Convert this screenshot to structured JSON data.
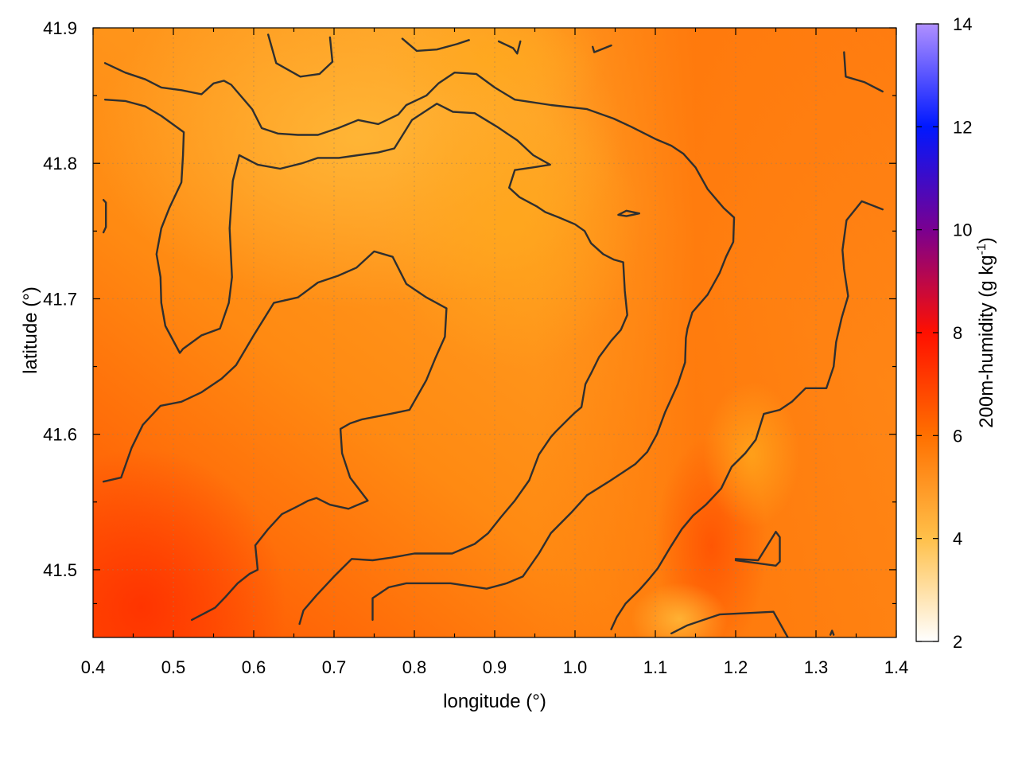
{
  "chart_data": {
    "type": "heatmap",
    "title": "",
    "xlabel": "longitude (°)",
    "ylabel": "latitude (°)",
    "colorbar_label": "200m-humidity (g kg",
    "colorbar_label_sup": "-1",
    "colorbar_label_end": ")",
    "xlim": [
      0.4,
      1.4
    ],
    "ylim": [
      41.45,
      41.9
    ],
    "x_ticks": [
      0.4,
      0.5,
      0.6,
      0.7,
      0.8,
      0.9,
      1.0,
      1.1,
      1.2,
      1.3,
      1.4
    ],
    "x_tick_labels": [
      "0.4",
      "0.5",
      "0.6",
      "0.7",
      "0.8",
      "0.9",
      "1.0",
      "1.1",
      "1.2",
      "1.3",
      "1.4"
    ],
    "y_ticks": [
      41.5,
      41.6,
      41.7,
      41.8,
      41.9
    ],
    "y_tick_labels": [
      "41.5",
      "41.6",
      "41.7",
      "41.8",
      "41.9"
    ],
    "colorbar_range": [
      2,
      14
    ],
    "colorbar_ticks": [
      2,
      4,
      6,
      8,
      10,
      12,
      14
    ],
    "colorbar_tick_labels": [
      "2",
      "4",
      "6",
      "8",
      "10",
      "12",
      "14"
    ],
    "colormap": [
      {
        "value": 2,
        "color": "#ffffff"
      },
      {
        "value": 4,
        "color": "#ffc04a"
      },
      {
        "value": 6,
        "color": "#ff7000"
      },
      {
        "value": 8,
        "color": "#ff1000"
      },
      {
        "value": 10,
        "color": "#7a0090"
      },
      {
        "value": 12,
        "color": "#0018ff"
      },
      {
        "value": 14,
        "color": "#b090ff"
      }
    ],
    "grid": true,
    "contours": [
      [
        [
          0.415,
          41.874
        ],
        [
          0.44,
          41.867
        ],
        [
          0.465,
          41.862
        ],
        [
          0.485,
          41.856
        ],
        [
          0.51,
          41.854
        ],
        [
          0.535,
          41.851
        ],
        [
          0.55,
          41.859
        ],
        [
          0.563,
          41.861
        ],
        [
          0.572,
          41.858
        ],
        [
          0.598,
          41.84
        ],
        [
          0.61,
          41.826
        ],
        [
          0.63,
          41.822
        ],
        [
          0.655,
          41.821
        ],
        [
          0.68,
          41.821
        ],
        [
          0.705,
          41.826
        ],
        [
          0.73,
          41.832
        ],
        [
          0.755,
          41.829
        ],
        [
          0.78,
          41.836
        ],
        [
          0.79,
          41.843
        ],
        [
          0.815,
          41.85
        ],
        [
          0.83,
          41.859
        ],
        [
          0.85,
          41.867
        ],
        [
          0.877,
          41.866
        ],
        [
          0.9,
          41.856
        ],
        [
          0.925,
          41.847
        ],
        [
          0.97,
          41.843
        ],
        [
          1.015,
          41.84
        ],
        [
          1.048,
          41.833
        ],
        [
          1.07,
          41.827
        ],
        [
          1.1,
          41.818
        ],
        [
          1.12,
          41.813
        ],
        [
          1.135,
          41.807
        ],
        [
          1.15,
          41.797
        ],
        [
          1.165,
          41.781
        ],
        [
          1.185,
          41.767
        ],
        [
          1.198,
          41.76
        ],
        [
          1.197,
          41.742
        ],
        [
          1.188,
          41.731
        ],
        [
          1.18,
          41.719
        ],
        [
          1.165,
          41.703
        ],
        [
          1.146,
          41.69
        ],
        [
          1.14,
          41.678
        ],
        [
          1.138,
          41.671
        ],
        [
          1.137,
          41.653
        ],
        [
          1.128,
          41.637
        ],
        [
          1.112,
          41.616
        ],
        [
          1.102,
          41.6
        ],
        [
          1.09,
          41.587
        ],
        [
          1.075,
          41.578
        ],
        [
          1.06,
          41.572
        ],
        [
          1.042,
          41.565
        ],
        [
          1.015,
          41.555
        ],
        [
          0.995,
          41.542
        ],
        [
          0.97,
          41.527
        ],
        [
          0.955,
          41.512
        ],
        [
          0.935,
          41.495
        ],
        [
          0.915,
          41.49
        ],
        [
          0.89,
          41.486
        ],
        [
          0.845,
          41.49
        ],
        [
          0.79,
          41.49
        ],
        [
          0.768,
          41.487
        ],
        [
          0.748,
          41.479
        ],
        [
          0.748,
          41.463
        ]
      ],
      [
        [
          0.415,
          41.847
        ],
        [
          0.44,
          41.846
        ],
        [
          0.465,
          41.842
        ],
        [
          0.485,
          41.835
        ],
        [
          0.513,
          41.823
        ],
        [
          0.512,
          41.806
        ],
        [
          0.51,
          41.786
        ],
        [
          0.495,
          41.767
        ],
        [
          0.485,
          41.752
        ],
        [
          0.479,
          41.733
        ],
        [
          0.484,
          41.716
        ],
        [
          0.485,
          41.697
        ],
        [
          0.49,
          41.68
        ],
        [
          0.508,
          41.66
        ],
        [
          0.512,
          41.663
        ],
        [
          0.535,
          41.673
        ],
        [
          0.558,
          41.678
        ],
        [
          0.569,
          41.697
        ],
        [
          0.573,
          41.716
        ],
        [
          0.57,
          41.752
        ],
        [
          0.574,
          41.787
        ],
        [
          0.582,
          41.806
        ],
        [
          0.605,
          41.799
        ],
        [
          0.633,
          41.796
        ],
        [
          0.66,
          41.8
        ],
        [
          0.68,
          41.804
        ],
        [
          0.706,
          41.804
        ],
        [
          0.73,
          41.806
        ],
        [
          0.755,
          41.808
        ],
        [
          0.775,
          41.811
        ],
        [
          0.797,
          41.832
        ],
        [
          0.828,
          41.844
        ],
        [
          0.848,
          41.838
        ],
        [
          0.875,
          41.837
        ],
        [
          0.903,
          41.827
        ],
        [
          0.928,
          41.817
        ],
        [
          0.948,
          41.806
        ],
        [
          0.969,
          41.799
        ],
        [
          0.948,
          41.797
        ],
        [
          0.925,
          41.795
        ],
        [
          0.918,
          41.782
        ],
        [
          0.931,
          41.775
        ],
        [
          0.953,
          41.768
        ],
        [
          0.963,
          41.764
        ],
        [
          0.98,
          41.76
        ],
        [
          1.0,
          41.755
        ],
        [
          1.012,
          41.75
        ],
        [
          1.02,
          41.741
        ],
        [
          1.035,
          41.733
        ],
        [
          1.048,
          41.729
        ],
        [
          1.06,
          41.727
        ],
        [
          1.062,
          41.706
        ],
        [
          1.065,
          41.688
        ],
        [
          1.057,
          41.677
        ],
        [
          1.045,
          41.669
        ],
        [
          1.03,
          41.657
        ],
        [
          1.02,
          41.645
        ],
        [
          1.013,
          41.637
        ],
        [
          1.008,
          41.62
        ],
        [
          1.0,
          41.616
        ],
        [
          0.993,
          41.612
        ],
        [
          0.976,
          41.602
        ],
        [
          0.97,
          41.598
        ],
        [
          0.955,
          41.585
        ],
        [
          0.943,
          41.566
        ],
        [
          0.925,
          41.551
        ],
        [
          0.908,
          41.539
        ],
        [
          0.892,
          41.527
        ],
        [
          0.875,
          41.519
        ],
        [
          0.847,
          41.512
        ],
        [
          0.8,
          41.512
        ],
        [
          0.772,
          41.509
        ],
        [
          0.748,
          41.507
        ],
        [
          0.722,
          41.508
        ],
        [
          0.7,
          41.495
        ],
        [
          0.678,
          41.481
        ],
        [
          0.662,
          41.47
        ],
        [
          0.657,
          41.46
        ]
      ],
      [
        [
          0.413,
          41.565
        ],
        [
          0.435,
          41.568
        ],
        [
          0.448,
          41.59
        ],
        [
          0.462,
          41.607
        ],
        [
          0.484,
          41.621
        ],
        [
          0.51,
          41.624
        ],
        [
          0.535,
          41.631
        ],
        [
          0.56,
          41.641
        ],
        [
          0.578,
          41.651
        ],
        [
          0.6,
          41.673
        ],
        [
          0.625,
          41.697
        ],
        [
          0.655,
          41.701
        ],
        [
          0.68,
          41.712
        ],
        [
          0.705,
          41.717
        ],
        [
          0.728,
          41.723
        ],
        [
          0.75,
          41.735
        ],
        [
          0.773,
          41.731
        ],
        [
          0.79,
          41.711
        ],
        [
          0.815,
          41.701
        ],
        [
          0.84,
          41.693
        ],
        [
          0.838,
          41.672
        ],
        [
          0.826,
          41.656
        ],
        [
          0.815,
          41.64
        ],
        [
          0.794,
          41.618
        ],
        [
          0.77,
          41.615
        ],
        [
          0.735,
          41.611
        ],
        [
          0.72,
          41.608
        ],
        [
          0.708,
          41.604
        ],
        [
          0.71,
          41.586
        ],
        [
          0.72,
          41.568
        ],
        [
          0.742,
          41.551
        ],
        [
          0.718,
          41.545
        ],
        [
          0.695,
          41.548
        ],
        [
          0.678,
          41.553
        ],
        [
          0.668,
          41.551
        ],
        [
          0.652,
          41.546
        ],
        [
          0.635,
          41.541
        ],
        [
          0.618,
          41.53
        ],
        [
          0.602,
          41.518
        ],
        [
          0.605,
          41.5
        ],
        [
          0.595,
          41.497
        ],
        [
          0.58,
          41.49
        ],
        [
          0.565,
          41.48
        ],
        [
          0.552,
          41.472
        ],
        [
          0.523,
          41.463
        ]
      ],
      [
        [
          0.618,
          41.895
        ],
        [
          0.628,
          41.874
        ],
        [
          0.658,
          41.864
        ],
        [
          0.682,
          41.866
        ],
        [
          0.698,
          41.875
        ],
        [
          0.695,
          41.893
        ]
      ],
      [
        [
          0.785,
          41.892
        ],
        [
          0.803,
          41.883
        ],
        [
          0.828,
          41.884
        ],
        [
          0.853,
          41.888
        ],
        [
          0.868,
          41.891
        ]
      ],
      [
        [
          0.905,
          41.89
        ],
        [
          0.923,
          41.885
        ],
        [
          0.928,
          41.881
        ],
        [
          0.932,
          41.89
        ]
      ],
      [
        [
          1.022,
          41.886
        ],
        [
          1.024,
          41.882
        ],
        [
          1.045,
          41.887
        ]
      ],
      [
        [
          1.335,
          41.882
        ],
        [
          1.337,
          41.864
        ],
        [
          1.36,
          41.86
        ],
        [
          1.383,
          41.853
        ]
      ],
      [
        [
          0.413,
          41.773
        ],
        [
          0.416,
          41.771
        ],
        [
          0.416,
          41.753
        ],
        [
          0.413,
          41.749
        ]
      ],
      [
        [
          1.054,
          41.762
        ],
        [
          1.064,
          41.765
        ],
        [
          1.08,
          41.763
        ],
        [
          1.064,
          41.761
        ],
        [
          1.054,
          41.762
        ]
      ],
      [
        [
          1.383,
          41.766
        ],
        [
          1.357,
          41.772
        ],
        [
          1.338,
          41.758
        ],
        [
          1.333,
          41.736
        ],
        [
          1.335,
          41.722
        ],
        [
          1.34,
          41.702
        ],
        [
          1.332,
          41.686
        ],
        [
          1.325,
          41.668
        ],
        [
          1.322,
          41.65
        ],
        [
          1.313,
          41.634
        ],
        [
          1.287,
          41.634
        ],
        [
          1.27,
          41.624
        ],
        [
          1.255,
          41.618
        ],
        [
          1.235,
          41.615
        ],
        [
          1.225,
          41.596
        ],
        [
          1.212,
          41.586
        ],
        [
          1.195,
          41.576
        ],
        [
          1.182,
          41.56
        ],
        [
          1.163,
          41.548
        ],
        [
          1.147,
          41.54
        ],
        [
          1.133,
          41.53
        ],
        [
          1.118,
          41.516
        ],
        [
          1.103,
          41.501
        ],
        [
          1.092,
          41.493
        ],
        [
          1.08,
          41.485
        ],
        [
          1.063,
          41.475
        ],
        [
          1.052,
          41.465
        ],
        [
          1.045,
          41.456
        ]
      ],
      [
        [
          1.12,
          41.453
        ],
        [
          1.14,
          41.459
        ],
        [
          1.16,
          41.463
        ],
        [
          1.18,
          41.467
        ],
        [
          1.213,
          41.468
        ],
        [
          1.247,
          41.469
        ],
        [
          1.265,
          41.45
        ]
      ],
      [
        [
          1.2,
          41.507
        ],
        [
          1.225,
          41.505
        ],
        [
          1.25,
          41.503
        ],
        [
          1.255,
          41.506
        ],
        [
          1.255,
          41.524
        ],
        [
          1.25,
          41.528
        ],
        [
          1.228,
          41.507
        ],
        [
          1.2,
          41.508
        ]
      ],
      [
        [
          1.318,
          41.452
        ],
        [
          1.32,
          41.455
        ],
        [
          1.322,
          41.452
        ]
      ]
    ]
  }
}
